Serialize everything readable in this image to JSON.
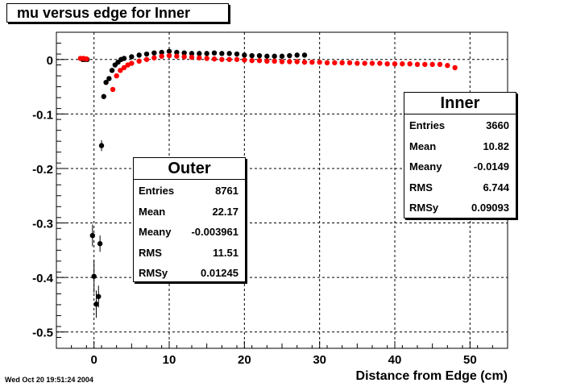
{
  "title": "mu versus edge for Inner",
  "footer_date": "Wed Oct 20 19:51:24 2004",
  "stats_outer": {
    "header": "Outer",
    "rows": [
      {
        "key": "Entries",
        "value": "8761"
      },
      {
        "key": "Mean",
        "value": "22.17"
      },
      {
        "key": "Meany",
        "value": "-0.003961"
      },
      {
        "key": "RMS",
        "value": "11.51"
      },
      {
        "key": "RMSy",
        "value": "0.01245"
      }
    ]
  },
  "stats_inner": {
    "header": "Inner",
    "rows": [
      {
        "key": "Entries",
        "value": "3660"
      },
      {
        "key": "Mean",
        "value": "10.82"
      },
      {
        "key": "Meany",
        "value": "-0.0149"
      },
      {
        "key": "RMS",
        "value": "6.744"
      },
      {
        "key": "RMSy",
        "value": "0.09093"
      }
    ]
  },
  "chart_data": {
    "type": "scatter",
    "title": "mu versus edge for Inner",
    "xlabel": "Distance from Edge (cm)",
    "ylabel": "",
    "xlim": [
      -5,
      55
    ],
    "ylim": [
      -0.53,
      0.05
    ],
    "xticks": [
      0,
      10,
      20,
      30,
      40,
      50
    ],
    "yticks": [
      0,
      -0.1,
      -0.2,
      -0.3,
      -0.4,
      -0.5
    ],
    "grid": true,
    "series": [
      {
        "name": "Outer",
        "color": "#000000",
        "points": [
          {
            "x": -1.5,
            "y": 0.0
          },
          {
            "x": -1.2,
            "y": 0.0
          },
          {
            "x": -0.9,
            "y": 0.0
          },
          {
            "x": -0.2,
            "y": -0.323,
            "err": 0.02
          },
          {
            "x": 0.0,
            "y": -0.398,
            "err": 0.03
          },
          {
            "x": 0.3,
            "y": -0.449,
            "err": 0.025
          },
          {
            "x": 0.6,
            "y": -0.435,
            "err": 0.02
          },
          {
            "x": 0.8,
            "y": -0.338,
            "err": 0.015
          },
          {
            "x": 1.0,
            "y": -0.158,
            "err": 0.01
          },
          {
            "x": 1.3,
            "y": -0.068
          },
          {
            "x": 1.6,
            "y": -0.042
          },
          {
            "x": 2.0,
            "y": -0.035
          },
          {
            "x": 2.4,
            "y": -0.02
          },
          {
            "x": 2.8,
            "y": -0.01
          },
          {
            "x": 3.2,
            "y": -0.005
          },
          {
            "x": 3.6,
            "y": 0.0
          },
          {
            "x": 4.0,
            "y": 0.002
          },
          {
            "x": 5.0,
            "y": 0.005
          },
          {
            "x": 6.0,
            "y": 0.008
          },
          {
            "x": 7.0,
            "y": 0.01
          },
          {
            "x": 8.0,
            "y": 0.012
          },
          {
            "x": 9.0,
            "y": 0.013
          },
          {
            "x": 10.0,
            "y": 0.015
          },
          {
            "x": 11.0,
            "y": 0.013
          },
          {
            "x": 12.0,
            "y": 0.012
          },
          {
            "x": 13.0,
            "y": 0.011
          },
          {
            "x": 14.0,
            "y": 0.011
          },
          {
            "x": 15.0,
            "y": 0.011
          },
          {
            "x": 16.0,
            "y": 0.012
          },
          {
            "x": 17.0,
            "y": 0.011
          },
          {
            "x": 18.0,
            "y": 0.011
          },
          {
            "x": 19.0,
            "y": 0.01
          },
          {
            "x": 20.0,
            "y": 0.008
          },
          {
            "x": 21.0,
            "y": 0.007
          },
          {
            "x": 22.0,
            "y": 0.007
          },
          {
            "x": 23.0,
            "y": 0.006
          },
          {
            "x": 24.0,
            "y": 0.006
          },
          {
            "x": 25.0,
            "y": 0.006
          },
          {
            "x": 26.0,
            "y": 0.007
          },
          {
            "x": 27.0,
            "y": 0.008
          },
          {
            "x": 28.0,
            "y": 0.008
          }
        ]
      },
      {
        "name": "Inner",
        "color": "#ff0000",
        "points": [
          {
            "x": -1.8,
            "y": 0.002
          },
          {
            "x": -1.4,
            "y": 0.002
          },
          {
            "x": -1.0,
            "y": 0.001
          },
          {
            "x": 2.5,
            "y": -0.055
          },
          {
            "x": 3.0,
            "y": -0.03
          },
          {
            "x": 3.5,
            "y": -0.02
          },
          {
            "x": 4.0,
            "y": -0.015
          },
          {
            "x": 4.5,
            "y": -0.01
          },
          {
            "x": 5.0,
            "y": -0.007
          },
          {
            "x": 6.0,
            "y": -0.003
          },
          {
            "x": 7.0,
            "y": 0.0
          },
          {
            "x": 8.0,
            "y": 0.003
          },
          {
            "x": 9.0,
            "y": 0.006
          },
          {
            "x": 10.0,
            "y": 0.007
          },
          {
            "x": 11.0,
            "y": 0.006
          },
          {
            "x": 12.0,
            "y": 0.005
          },
          {
            "x": 13.0,
            "y": 0.004
          },
          {
            "x": 14.0,
            "y": 0.003
          },
          {
            "x": 15.0,
            "y": 0.002
          },
          {
            "x": 16.0,
            "y": 0.001
          },
          {
            "x": 17.0,
            "y": 0.0
          },
          {
            "x": 18.0,
            "y": 0.0
          },
          {
            "x": 19.0,
            "y": 0.0
          },
          {
            "x": 20.0,
            "y": -0.001
          },
          {
            "x": 21.0,
            "y": -0.002
          },
          {
            "x": 22.0,
            "y": -0.002
          },
          {
            "x": 23.0,
            "y": -0.003
          },
          {
            "x": 24.0,
            "y": -0.003
          },
          {
            "x": 25.0,
            "y": -0.004
          },
          {
            "x": 26.0,
            "y": -0.004
          },
          {
            "x": 27.0,
            "y": -0.004
          },
          {
            "x": 28.0,
            "y": -0.005
          },
          {
            "x": 29.0,
            "y": -0.005
          },
          {
            "x": 30.0,
            "y": -0.005
          },
          {
            "x": 31.0,
            "y": -0.006
          },
          {
            "x": 32.0,
            "y": -0.006
          },
          {
            "x": 33.0,
            "y": -0.006
          },
          {
            "x": 34.0,
            "y": -0.006
          },
          {
            "x": 35.0,
            "y": -0.007
          },
          {
            "x": 36.0,
            "y": -0.007
          },
          {
            "x": 37.0,
            "y": -0.007
          },
          {
            "x": 38.0,
            "y": -0.007
          },
          {
            "x": 39.0,
            "y": -0.008
          },
          {
            "x": 40.0,
            "y": -0.008
          },
          {
            "x": 41.0,
            "y": -0.008
          },
          {
            "x": 42.0,
            "y": -0.008
          },
          {
            "x": 43.0,
            "y": -0.009
          },
          {
            "x": 44.0,
            "y": -0.009
          },
          {
            "x": 45.0,
            "y": -0.009
          },
          {
            "x": 46.0,
            "y": -0.009
          },
          {
            "x": 47.0,
            "y": -0.011
          },
          {
            "x": 48.0,
            "y": -0.015
          }
        ]
      }
    ]
  }
}
